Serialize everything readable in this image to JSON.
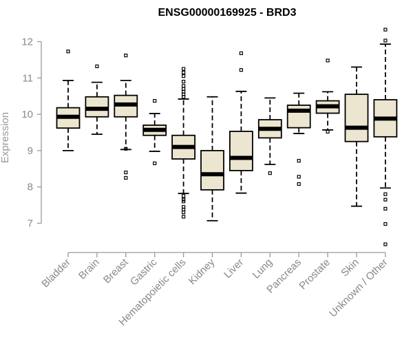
{
  "chart_data": {
    "type": "boxplot",
    "title": "ENSG00000169925 - BRD3",
    "xlabel": "",
    "ylabel": "Expression",
    "ylim": [
      6.3,
      12.4
    ],
    "yticks": [
      7,
      8,
      9,
      10,
      11,
      12
    ],
    "box_color": "#ece6d0",
    "categories": [
      "Bladder",
      "Brain",
      "Breast",
      "Gastric",
      "Hematopoietic cells",
      "Kidney",
      "Liver",
      "Lung",
      "Pancreas",
      "Prostate",
      "Skin",
      "Unknown / Other"
    ],
    "boxes": [
      {
        "q1": 9.62,
        "median": 9.93,
        "q3": 10.18,
        "whisker_low": 9.0,
        "whisker_high": 10.93,
        "outliers": [
          11.73
        ]
      },
      {
        "q1": 9.93,
        "median": 10.15,
        "q3": 10.48,
        "whisker_low": 9.45,
        "whisker_high": 10.88,
        "outliers": [
          11.32
        ]
      },
      {
        "q1": 9.93,
        "median": 10.27,
        "q3": 10.52,
        "whisker_low": 9.03,
        "whisker_high": 10.93,
        "outliers": [
          11.62,
          9.05,
          8.4,
          8.25
        ]
      },
      {
        "q1": 9.42,
        "median": 9.57,
        "q3": 9.7,
        "whisker_low": 8.98,
        "whisker_high": 10.02,
        "outliers": [
          10.37,
          8.65
        ]
      },
      {
        "q1": 8.77,
        "median": 9.1,
        "q3": 9.42,
        "whisker_low": 7.82,
        "whisker_high": 10.42,
        "outliers": [
          11.25,
          11.15,
          11.05,
          10.9,
          10.78,
          10.7,
          10.62,
          10.55,
          10.48,
          7.75,
          7.65,
          7.6,
          7.45,
          7.38,
          7.3,
          7.18
        ]
      },
      {
        "q1": 7.92,
        "median": 8.35,
        "q3": 9.0,
        "whisker_low": 7.07,
        "whisker_high": 10.48,
        "outliers": []
      },
      {
        "q1": 8.45,
        "median": 8.8,
        "q3": 9.53,
        "whisker_low": 7.83,
        "whisker_high": 10.63,
        "outliers": [
          11.68,
          11.22
        ]
      },
      {
        "q1": 9.35,
        "median": 9.6,
        "q3": 9.85,
        "whisker_low": 8.62,
        "whisker_high": 10.45,
        "outliers": [
          8.38
        ]
      },
      {
        "q1": 9.63,
        "median": 10.1,
        "q3": 10.25,
        "whisker_low": 9.47,
        "whisker_high": 10.58,
        "outliers": [
          8.72,
          8.28,
          8.08
        ]
      },
      {
        "q1": 10.03,
        "median": 10.22,
        "q3": 10.37,
        "whisker_low": 9.57,
        "whisker_high": 10.62,
        "outliers": [
          11.48,
          9.52
        ]
      },
      {
        "q1": 9.25,
        "median": 9.63,
        "q3": 10.55,
        "whisker_low": 7.47,
        "whisker_high": 11.3,
        "outliers": []
      },
      {
        "q1": 9.38,
        "median": 9.88,
        "q3": 10.4,
        "whisker_low": 7.97,
        "whisker_high": 11.93,
        "outliers": [
          12.33,
          12.03,
          7.8,
          7.65,
          7.4,
          6.98,
          6.42
        ]
      }
    ]
  }
}
